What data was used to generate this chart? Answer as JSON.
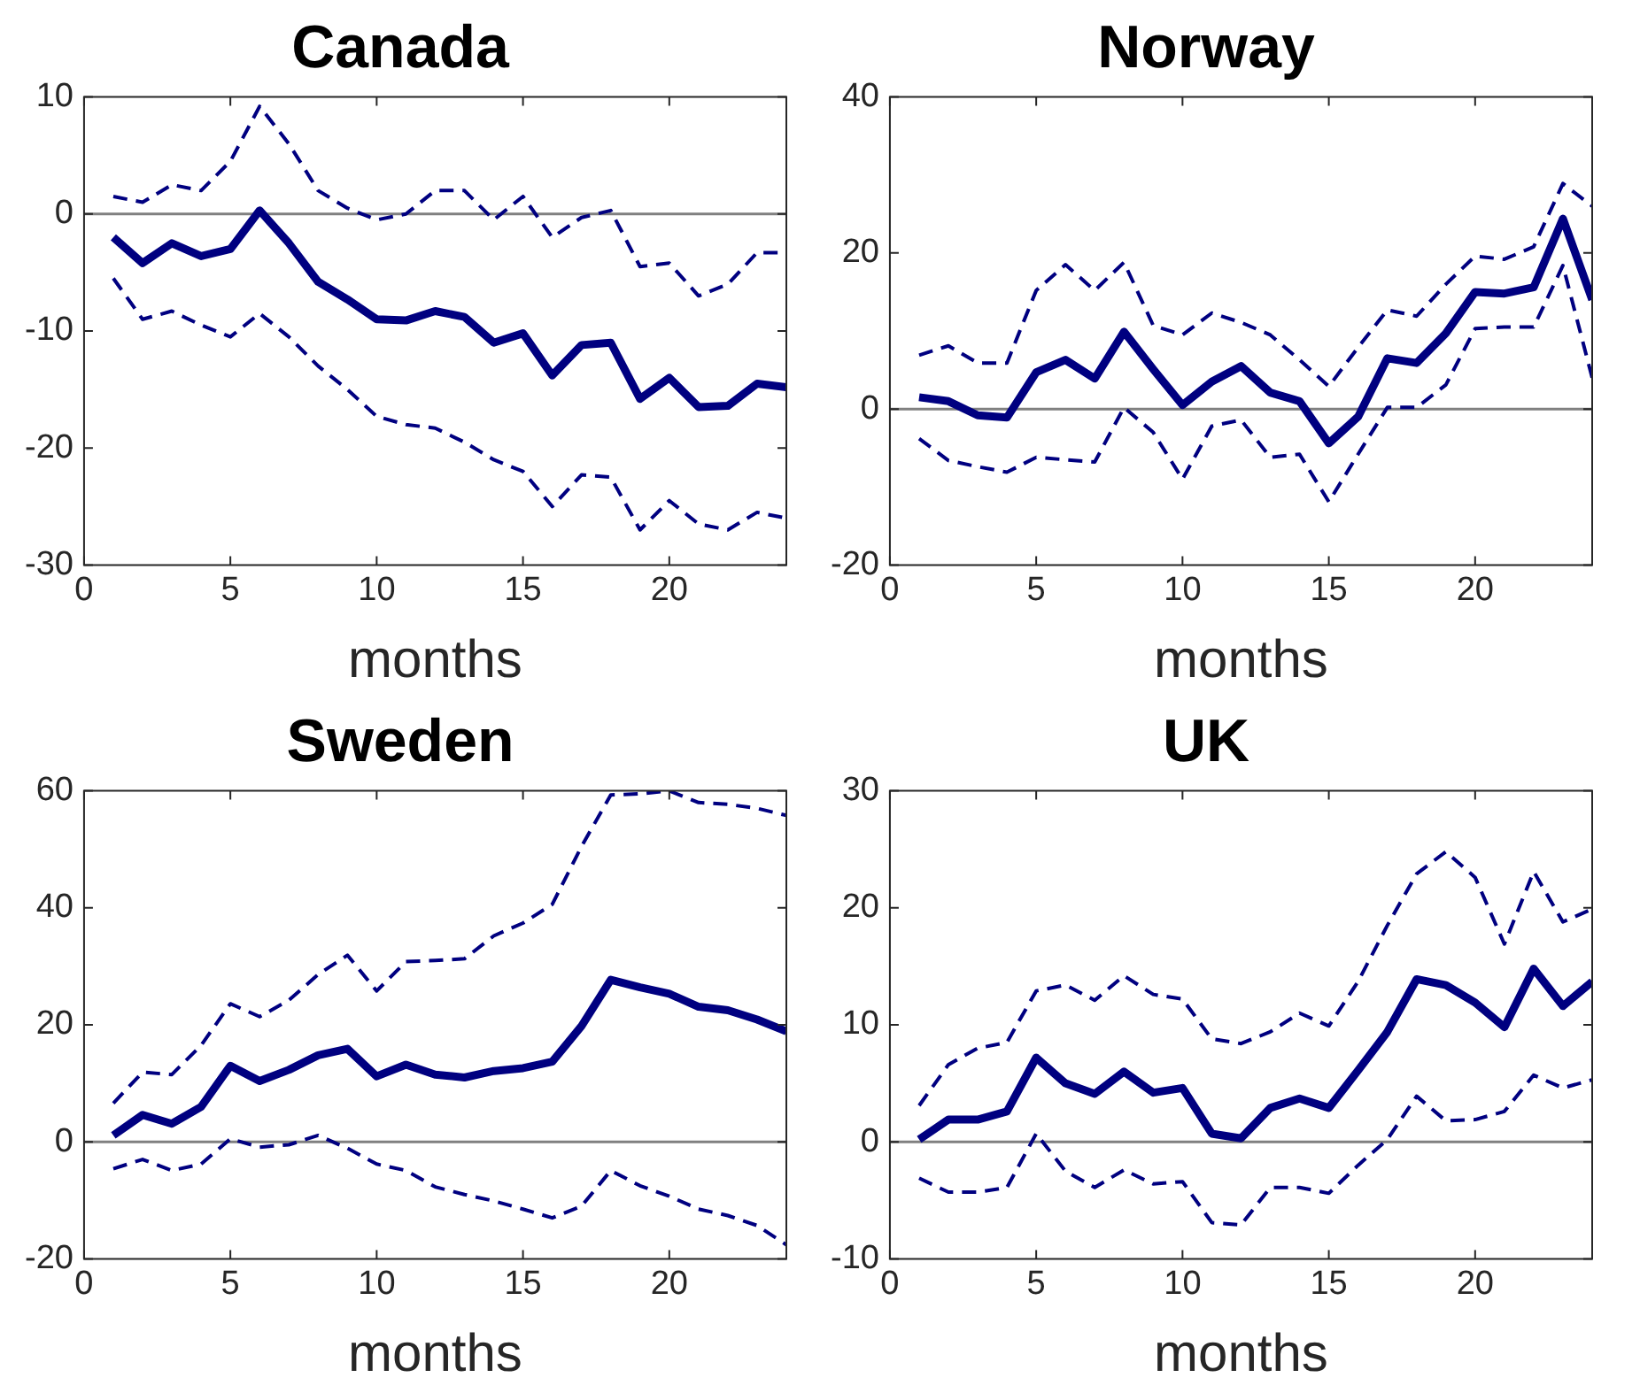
{
  "chart_data": [
    {
      "type": "line",
      "title": "Canada",
      "xlabel": "months",
      "x": [
        1,
        2,
        3,
        4,
        5,
        6,
        7,
        8,
        9,
        10,
        11,
        12,
        13,
        14,
        15,
        16,
        17,
        18,
        19,
        20,
        21,
        22,
        23,
        24
      ],
      "xlim": [
        0,
        24
      ],
      "xticks": [
        0,
        5,
        10,
        15,
        20
      ],
      "ylim": [
        -30,
        10
      ],
      "yticks": [
        -30,
        -20,
        -10,
        0,
        10
      ],
      "grid": false,
      "legend": false,
      "marker": "none",
      "ref_lines": [
        {
          "axis": "y",
          "value": 0,
          "color": "#808080"
        }
      ],
      "series": [
        {
          "color": "#000080",
          "line_style": "solid",
          "values": [
            -2,
            -4.2,
            -2.5,
            -3.6,
            -3,
            0.3,
            -2.5,
            -5.8,
            -7.3,
            -9,
            -9.1,
            -8.3,
            -8.8,
            -11,
            -10.2,
            -13.8,
            -11.2,
            -11,
            -15.8,
            -14,
            -16.5,
            -16.4,
            -14.5,
            -14.8
          ]
        },
        {
          "color": "#000080",
          "line_style": "dashed",
          "values": [
            1.5,
            1,
            2.5,
            2,
            4.5,
            9.2,
            6,
            2,
            0.5,
            -0.5,
            0,
            2,
            2,
            -0.5,
            1.5,
            -2,
            -0.3,
            0.3,
            -4.5,
            -4.2,
            -7,
            -6,
            -3.3,
            -3.3
          ]
        },
        {
          "color": "#000080",
          "line_style": "dashed",
          "values": [
            -5.5,
            -9,
            -8.3,
            -9.5,
            -10.5,
            -8.5,
            -10.5,
            -13,
            -15,
            -17.3,
            -18,
            -18.3,
            -19.5,
            -21,
            -22,
            -25,
            -22.3,
            -22.5,
            -27,
            -24.5,
            -26.5,
            -27,
            -25.5,
            -26
          ]
        }
      ]
    },
    {
      "type": "line",
      "title": "Norway",
      "xlabel": "months",
      "x": [
        1,
        2,
        3,
        4,
        5,
        6,
        7,
        8,
        9,
        10,
        11,
        12,
        13,
        14,
        15,
        16,
        17,
        18,
        19,
        20,
        21,
        22,
        23,
        24
      ],
      "xlim": [
        0,
        24
      ],
      "xticks": [
        0,
        5,
        10,
        15,
        20
      ],
      "ylim": [
        -20,
        40
      ],
      "yticks": [
        -20,
        0,
        20,
        40
      ],
      "grid": false,
      "legend": false,
      "marker": "none",
      "ref_lines": [
        {
          "axis": "y",
          "value": 0,
          "color": "#808080"
        }
      ],
      "series": [
        {
          "color": "#000080",
          "line_style": "solid",
          "values": [
            1.5,
            1,
            -0.8,
            -1.1,
            4.7,
            6.3,
            3.9,
            9.9,
            5.1,
            0.5,
            3.5,
            5.5,
            2.1,
            1,
            -4.4,
            -1,
            6.5,
            5.9,
            9.7,
            15,
            14.8,
            15.6,
            24.4,
            14
          ]
        },
        {
          "color": "#000080",
          "line_style": "dashed",
          "values": [
            6.9,
            8.1,
            5.9,
            5.9,
            15.2,
            18.5,
            15.2,
            18.8,
            10.7,
            9.5,
            12.3,
            11.1,
            9.5,
            6.3,
            2.9,
            7.9,
            12.7,
            11.9,
            16,
            19.6,
            19.2,
            20.8,
            28.9,
            26
          ]
        },
        {
          "color": "#000080",
          "line_style": "dashed",
          "values": [
            -3.8,
            -6.6,
            -7.4,
            -8.1,
            -6.2,
            -6.5,
            -6.8,
            0.2,
            -3,
            -9,
            -2.2,
            -1.4,
            -6.2,
            -5.8,
            -11.9,
            -5.8,
            0.2,
            0.2,
            3.1,
            10.3,
            10.5,
            10.5,
            18.4,
            4
          ]
        }
      ]
    },
    {
      "type": "line",
      "title": "Sweden",
      "xlabel": "months",
      "x": [
        1,
        2,
        3,
        4,
        5,
        6,
        7,
        8,
        9,
        10,
        11,
        12,
        13,
        14,
        15,
        16,
        17,
        18,
        19,
        20,
        21,
        22,
        23,
        24
      ],
      "xlim": [
        0,
        24
      ],
      "xticks": [
        0,
        5,
        10,
        15,
        20
      ],
      "ylim": [
        -20,
        60
      ],
      "yticks": [
        -20,
        0,
        20,
        40,
        60
      ],
      "grid": false,
      "legend": false,
      "marker": "none",
      "ref_lines": [
        {
          "axis": "y",
          "value": 0,
          "color": "#808080"
        }
      ],
      "series": [
        {
          "color": "#000080",
          "line_style": "solid",
          "values": [
            1.1,
            4.6,
            3.1,
            6,
            13,
            10.4,
            12.3,
            14.8,
            15.9,
            11.2,
            13.2,
            11.5,
            11,
            12.1,
            12.6,
            13.7,
            19.8,
            27.7,
            26.4,
            25.3,
            23.1,
            22.5,
            20.9,
            18.9
          ]
        },
        {
          "color": "#000080",
          "line_style": "dashed",
          "values": [
            6.6,
            11.9,
            11.5,
            16.5,
            23.6,
            21.4,
            24.2,
            28.6,
            31.9,
            25.8,
            30.8,
            31,
            31.3,
            35.2,
            37.4,
            40.6,
            50.5,
            59.3,
            59.5,
            60,
            58,
            57.7,
            57,
            55.8
          ]
        },
        {
          "color": "#000080",
          "line_style": "dashed",
          "values": [
            -4.6,
            -3,
            -4.9,
            -3.8,
            0.5,
            -0.9,
            -0.5,
            1.1,
            -1.1,
            -3.8,
            -4.9,
            -7.7,
            -9,
            -10.1,
            -11.5,
            -13,
            -11,
            -4.9,
            -7.5,
            -9.3,
            -11.5,
            -12.6,
            -14.3,
            -17.6
          ]
        }
      ]
    },
    {
      "type": "line",
      "title": "UK",
      "xlabel": "months",
      "x": [
        1,
        2,
        3,
        4,
        5,
        6,
        7,
        8,
        9,
        10,
        11,
        12,
        13,
        14,
        15,
        16,
        17,
        18,
        19,
        20,
        21,
        22,
        23,
        24
      ],
      "xlim": [
        0,
        24
      ],
      "xticks": [
        0,
        5,
        10,
        15,
        20
      ],
      "ylim": [
        -10,
        30
      ],
      "yticks": [
        -10,
        0,
        10,
        20,
        30
      ],
      "grid": false,
      "legend": false,
      "marker": "none",
      "ref_lines": [
        {
          "axis": "y",
          "value": 0,
          "color": "#808080"
        }
      ],
      "series": [
        {
          "color": "#000080",
          "line_style": "solid",
          "values": [
            0.2,
            1.9,
            1.9,
            2.6,
            7.2,
            5,
            4.1,
            6,
            4.2,
            4.6,
            0.7,
            0.3,
            2.9,
            3.7,
            2.9,
            6.1,
            9.4,
            13.9,
            13.4,
            11.9,
            9.8,
            14.8,
            11.6,
            13.7
          ]
        },
        {
          "color": "#000080",
          "line_style": "dashed",
          "values": [
            3.1,
            6.6,
            8,
            8.5,
            12.9,
            13.4,
            12.1,
            14.2,
            12.6,
            12.2,
            8.8,
            8.4,
            9.4,
            11,
            9.9,
            13.7,
            18.5,
            22.9,
            24.8,
            22.6,
            16.9,
            23.1,
            18.8,
            19.9
          ]
        },
        {
          "color": "#000080",
          "line_style": "dashed",
          "values": [
            -3.1,
            -4.3,
            -4.3,
            -3.9,
            0.7,
            -2.5,
            -3.9,
            -2.4,
            -3.6,
            -3.4,
            -6.9,
            -7.1,
            -3.9,
            -3.9,
            -4.4,
            -2,
            0.2,
            3.9,
            1.8,
            1.9,
            2.6,
            5.7,
            4.6,
            5.3
          ]
        }
      ]
    }
  ]
}
